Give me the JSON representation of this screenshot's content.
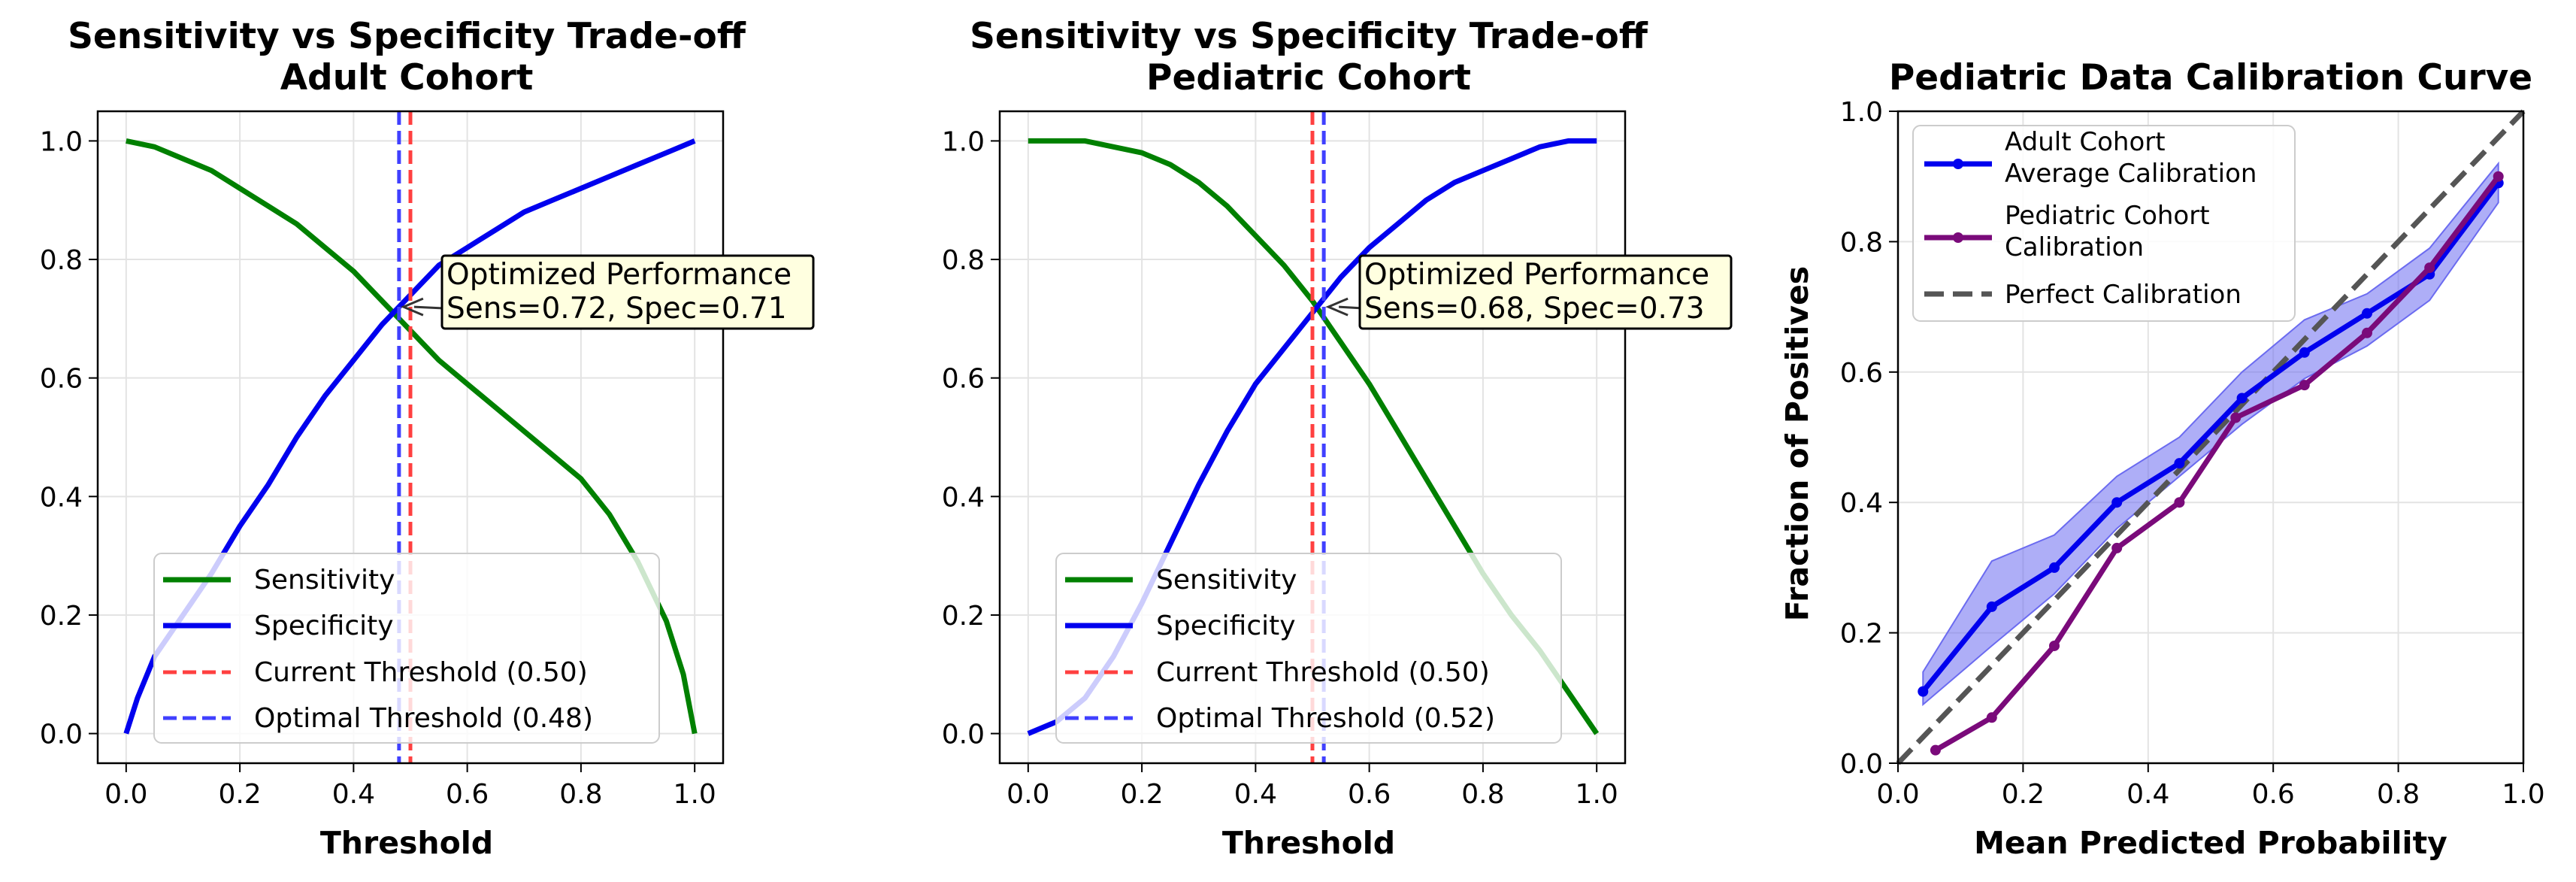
{
  "chart_data": [
    {
      "type": "line",
      "title": "Sensitivity vs Specificity Trade-off",
      "subtitle": "Adult Cohort",
      "xlabel": "Threshold",
      "ylabel": "",
      "xlim": [
        -0.05,
        1.05
      ],
      "ylim": [
        -0.05,
        1.05
      ],
      "xticks": [
        "0.0",
        "0.2",
        "0.4",
        "0.6",
        "0.8",
        "1.0"
      ],
      "yticks": [
        "0.0",
        "0.2",
        "0.4",
        "0.6",
        "0.8",
        "1.0"
      ],
      "grid": true,
      "legend_position": "lower-left",
      "series": [
        {
          "name": "Sensitivity",
          "color": "#008000",
          "x": [
            0.0,
            0.05,
            0.1,
            0.15,
            0.2,
            0.25,
            0.3,
            0.35,
            0.4,
            0.45,
            0.5,
            0.55,
            0.6,
            0.65,
            0.7,
            0.75,
            0.8,
            0.85,
            0.9,
            0.95,
            0.98,
            1.0
          ],
          "y": [
            1.0,
            0.99,
            0.97,
            0.95,
            0.92,
            0.89,
            0.86,
            0.82,
            0.78,
            0.73,
            0.68,
            0.63,
            0.59,
            0.55,
            0.51,
            0.47,
            0.43,
            0.37,
            0.29,
            0.19,
            0.1,
            0.0
          ]
        },
        {
          "name": "Specificity",
          "color": "#0000ee",
          "x": [
            0.0,
            0.02,
            0.05,
            0.1,
            0.15,
            0.2,
            0.25,
            0.3,
            0.35,
            0.4,
            0.45,
            0.5,
            0.55,
            0.6,
            0.65,
            0.7,
            0.75,
            0.8,
            0.85,
            0.9,
            0.95,
            1.0
          ],
          "y": [
            0.0,
            0.06,
            0.13,
            0.2,
            0.27,
            0.35,
            0.42,
            0.5,
            0.57,
            0.63,
            0.69,
            0.74,
            0.79,
            0.82,
            0.85,
            0.88,
            0.9,
            0.92,
            0.94,
            0.96,
            0.98,
            1.0
          ]
        }
      ],
      "vlines": [
        {
          "name": "Current Threshold (0.50)",
          "x": 0.5,
          "color": "#ff4040"
        },
        {
          "name": "Optimal Threshold (0.48)",
          "x": 0.48,
          "color": "#4040ff"
        }
      ],
      "annotation": {
        "line1": "Optimized Performance",
        "line2": "Sens=0.72, Spec=0.71",
        "point": [
          0.48,
          0.72
        ],
        "text_at": [
          0.57,
          0.77
        ]
      }
    },
    {
      "type": "line",
      "title": "Sensitivity vs Specificity Trade-off",
      "subtitle": "Pediatric Cohort",
      "xlabel": "Threshold",
      "ylabel": "",
      "xlim": [
        -0.05,
        1.05
      ],
      "ylim": [
        -0.05,
        1.05
      ],
      "xticks": [
        "0.0",
        "0.2",
        "0.4",
        "0.6",
        "0.8",
        "1.0"
      ],
      "yticks": [
        "0.0",
        "0.2",
        "0.4",
        "0.6",
        "0.8",
        "1.0"
      ],
      "grid": true,
      "legend_position": "lower-left",
      "series": [
        {
          "name": "Sensitivity",
          "color": "#008000",
          "x": [
            0.0,
            0.05,
            0.1,
            0.15,
            0.2,
            0.25,
            0.3,
            0.35,
            0.4,
            0.45,
            0.5,
            0.55,
            0.6,
            0.65,
            0.7,
            0.75,
            0.8,
            0.85,
            0.9,
            0.95,
            1.0
          ],
          "y": [
            1.0,
            1.0,
            1.0,
            0.99,
            0.98,
            0.96,
            0.93,
            0.89,
            0.84,
            0.79,
            0.73,
            0.66,
            0.59,
            0.51,
            0.43,
            0.35,
            0.27,
            0.2,
            0.14,
            0.07,
            0.0
          ]
        },
        {
          "name": "Specificity",
          "color": "#0000ee",
          "x": [
            0.0,
            0.05,
            0.1,
            0.15,
            0.2,
            0.25,
            0.3,
            0.35,
            0.4,
            0.45,
            0.5,
            0.55,
            0.6,
            0.65,
            0.7,
            0.75,
            0.8,
            0.85,
            0.9,
            0.95,
            1.0
          ],
          "y": [
            0.0,
            0.02,
            0.06,
            0.13,
            0.22,
            0.32,
            0.42,
            0.51,
            0.59,
            0.65,
            0.71,
            0.77,
            0.82,
            0.86,
            0.9,
            0.93,
            0.95,
            0.97,
            0.99,
            1.0,
            1.0
          ]
        }
      ],
      "vlines": [
        {
          "name": "Current Threshold (0.50)",
          "x": 0.5,
          "color": "#ff4040"
        },
        {
          "name": "Optimal Threshold (0.52)",
          "x": 0.52,
          "color": "#4040ff"
        }
      ],
      "annotation": {
        "line1": "Optimized Performance",
        "line2": "Sens=0.68, Spec=0.73",
        "point": [
          0.52,
          0.72
        ],
        "text_at": [
          0.6,
          0.77
        ]
      }
    },
    {
      "type": "line",
      "title": "Pediatric Data Calibration Curve",
      "xlabel": "Mean Predicted Probability",
      "ylabel": "Fraction of Positives",
      "xlim": [
        0.0,
        1.0
      ],
      "ylim": [
        0.0,
        1.0
      ],
      "xticks": [
        "0.0",
        "0.2",
        "0.4",
        "0.6",
        "0.8",
        "1.0"
      ],
      "yticks": [
        "0.0",
        "0.2",
        "0.4",
        "0.6",
        "0.8",
        "1.0"
      ],
      "grid": true,
      "legend_position": "upper-left",
      "series": [
        {
          "name": "Adult Cohort Average Calibration",
          "label_lines": [
            "Adult Cohort",
            "Average Calibration"
          ],
          "color": "#0000ee",
          "band_color": "#6b6bf0",
          "x": [
            0.04,
            0.15,
            0.25,
            0.35,
            0.45,
            0.55,
            0.65,
            0.75,
            0.85,
            0.96
          ],
          "y": [
            0.11,
            0.24,
            0.3,
            0.4,
            0.46,
            0.56,
            0.63,
            0.69,
            0.75,
            0.89
          ],
          "lower": [
            0.09,
            0.18,
            0.26,
            0.36,
            0.44,
            0.52,
            0.59,
            0.64,
            0.71,
            0.86
          ],
          "upper": [
            0.14,
            0.31,
            0.35,
            0.44,
            0.5,
            0.6,
            0.68,
            0.72,
            0.79,
            0.92
          ]
        },
        {
          "name": "Pediatric Cohort Calibration",
          "label_lines": [
            "Pediatric Cohort",
            "Calibration"
          ],
          "color": "#7a0a7a",
          "x": [
            0.06,
            0.15,
            0.25,
            0.35,
            0.45,
            0.54,
            0.65,
            0.75,
            0.85,
            0.96
          ],
          "y": [
            0.02,
            0.07,
            0.18,
            0.33,
            0.4,
            0.53,
            0.58,
            0.66,
            0.76,
            0.9
          ]
        },
        {
          "name": "Perfect Calibration",
          "label_lines": [
            "Perfect Calibration"
          ],
          "color": "#555555",
          "dashed": true,
          "x": [
            0.0,
            1.0
          ],
          "y": [
            0.0,
            1.0
          ]
        }
      ]
    }
  ]
}
